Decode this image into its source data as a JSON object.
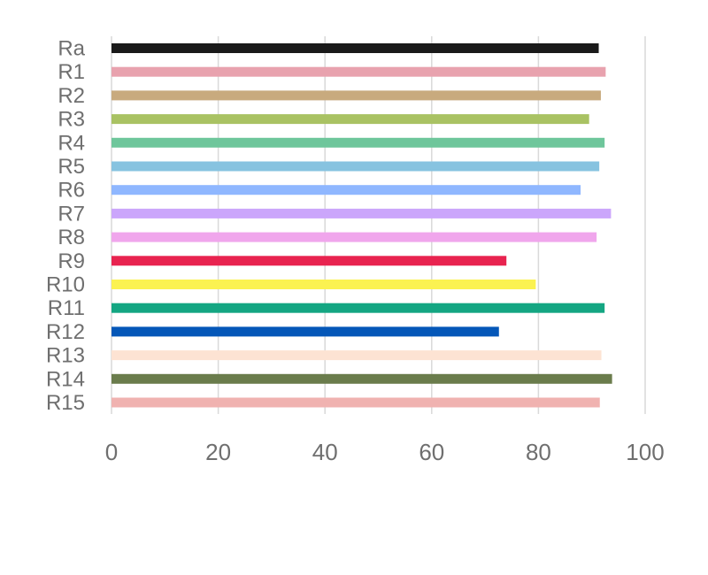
{
  "chart_data": {
    "type": "bar",
    "orientation": "horizontal",
    "categories": [
      "Ra",
      "R1",
      "R2",
      "R3",
      "R4",
      "R5",
      "R6",
      "R7",
      "R8",
      "R9",
      "R10",
      "R11",
      "R12",
      "R13",
      "R14",
      "R15"
    ],
    "values": [
      91.3,
      92.6,
      91.7,
      89.5,
      92.4,
      91.4,
      87.9,
      93.6,
      90.9,
      74.0,
      79.5,
      92.4,
      72.6,
      91.8,
      93.8,
      91.5
    ],
    "colors": [
      "#1a1a1a",
      "#e8a2ae",
      "#c8aa7e",
      "#a9c263",
      "#6ec69b",
      "#87c3e0",
      "#8fb7ff",
      "#cba6fb",
      "#f0a6ec",
      "#e8234f",
      "#fbf251",
      "#14a682",
      "#0457b8",
      "#fde3d3",
      "#6a7c4c",
      "#f0b2b0"
    ],
    "xlim": [
      0,
      100
    ],
    "xticks": [
      "0",
      "20",
      "40",
      "60",
      "80",
      "100"
    ],
    "grid": true,
    "title": "",
    "xlabel": "",
    "ylabel": ""
  }
}
